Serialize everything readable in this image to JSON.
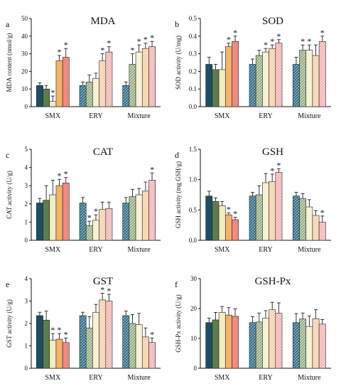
{
  "palette": {
    "solid": [
      "#1d4e63",
      "#5d7d4f",
      "#f3ecc3",
      "#f5b26b",
      "#f08a82"
    ],
    "hatched": [
      "#2f6e8a",
      "#8aa36f",
      "#f3ecc3",
      "#f6c89a",
      "#f0a8a8"
    ]
  },
  "chart_data": [
    {
      "type": "bar",
      "panel_letter": "a",
      "title": "MDA",
      "ylabel": "MDA content (nmol/g)",
      "ylim": [
        0,
        50
      ],
      "yticks": [
        "0",
        "10",
        "20",
        "30",
        "40",
        "50"
      ],
      "categories": [
        "SMX",
        "ERY",
        "Mixture"
      ],
      "values": [
        [
          12,
          10,
          3,
          26,
          28
        ],
        [
          12,
          14,
          16,
          26,
          31
        ],
        [
          12,
          24,
          31,
          33,
          34
        ]
      ],
      "errors": [
        [
          1.5,
          2,
          3,
          3,
          5
        ],
        [
          2,
          4,
          3,
          4,
          3
        ],
        [
          2,
          6,
          4,
          3,
          3
        ]
      ],
      "significant": [
        [
          false,
          false,
          true,
          true,
          true
        ],
        [
          false,
          false,
          false,
          true,
          true
        ],
        [
          false,
          true,
          true,
          true,
          true
        ]
      ]
    },
    {
      "type": "bar",
      "panel_letter": "b",
      "title": "SOD",
      "ylabel": "SOD activity (U/mg)",
      "ylim": [
        0,
        0.5
      ],
      "yticks": [
        "0.0",
        "0.1",
        "0.2",
        "0.3",
        "0.4",
        "0.5"
      ],
      "categories": [
        "SMX",
        "ERY",
        "Mixture"
      ],
      "values": [
        [
          0.24,
          0.21,
          0.21,
          0.34,
          0.37
        ],
        [
          0.24,
          0.29,
          0.31,
          0.33,
          0.36
        ],
        [
          0.24,
          0.32,
          0.32,
          0.29,
          0.37
        ]
      ],
      "errors": [
        [
          0.04,
          0.03,
          0.1,
          0.02,
          0.03
        ],
        [
          0.03,
          0.03,
          0.02,
          0.02,
          0.02
        ],
        [
          0.04,
          0.03,
          0.03,
          0.06,
          0.03
        ]
      ],
      "significant": [
        [
          false,
          false,
          false,
          true,
          true
        ],
        [
          false,
          false,
          true,
          true,
          true
        ],
        [
          false,
          true,
          true,
          false,
          true
        ]
      ]
    },
    {
      "type": "bar",
      "panel_letter": "c",
      "title": "CAT",
      "ylabel": "CAT activity (U/g)",
      "ylim": [
        0,
        5
      ],
      "yticks": [
        "0",
        "1",
        "2",
        "3",
        "4",
        "5"
      ],
      "categories": [
        "SMX",
        "ERY",
        "Mixture"
      ],
      "values": [
        [
          2.05,
          2.2,
          2.5,
          3.0,
          3.15
        ],
        [
          2.05,
          0.8,
          1.1,
          1.7,
          1.75
        ],
        [
          2.05,
          2.4,
          2.5,
          2.7,
          3.3
        ]
      ],
      "errors": [
        [
          0.25,
          0.8,
          0.8,
          0.35,
          0.3
        ],
        [
          0.3,
          0.25,
          0.3,
          0.4,
          0.35
        ],
        [
          0.3,
          0.4,
          0.35,
          0.5,
          0.4
        ]
      ],
      "significant": [
        [
          false,
          false,
          false,
          true,
          true
        ],
        [
          false,
          true,
          true,
          false,
          false
        ],
        [
          false,
          false,
          false,
          false,
          true
        ]
      ]
    },
    {
      "type": "bar",
      "panel_letter": "d",
      "title": "GSH",
      "ylabel": "GSH activity (mg GSH/g)",
      "ylim": [
        0,
        1.5
      ],
      "yticks": [
        "0.0",
        "0.5",
        "1.0",
        "1.5"
      ],
      "categories": [
        "SMX",
        "ERY",
        "Mixture"
      ],
      "values": [
        [
          0.73,
          0.64,
          0.57,
          0.42,
          0.34
        ],
        [
          0.73,
          0.75,
          0.95,
          0.97,
          1.12
        ],
        [
          0.73,
          0.69,
          0.55,
          0.41,
          0.3
        ]
      ],
      "errors": [
        [
          0.08,
          0.06,
          0.07,
          0.03,
          0.04
        ],
        [
          0.06,
          0.15,
          0.15,
          0.12,
          0.06
        ],
        [
          0.06,
          0.08,
          0.12,
          0.08,
          0.1
        ]
      ],
      "significant": [
        [
          false,
          false,
          false,
          true,
          true
        ],
        [
          false,
          false,
          false,
          true,
          true
        ],
        [
          false,
          false,
          false,
          false,
          true
        ]
      ]
    },
    {
      "type": "bar",
      "panel_letter": "e",
      "title": "GST",
      "ylabel": "GST activity (U/g)",
      "ylim": [
        0,
        4
      ],
      "yticks": [
        "0",
        "1",
        "2",
        "3",
        "4"
      ],
      "categories": [
        "SMX",
        "ERY",
        "Mixture"
      ],
      "values": [
        [
          2.35,
          2.15,
          1.25,
          1.3,
          1.15
        ],
        [
          2.35,
          1.8,
          2.5,
          3.05,
          3.0
        ],
        [
          2.35,
          2.0,
          1.95,
          1.4,
          1.15
        ]
      ],
      "errors": [
        [
          0.15,
          0.4,
          0.3,
          0.25,
          0.2
        ],
        [
          0.15,
          0.5,
          0.35,
          0.3,
          0.3
        ],
        [
          0.2,
          0.4,
          0.5,
          0.4,
          0.2
        ]
      ],
      "significant": [
        [
          false,
          false,
          true,
          true,
          true
        ],
        [
          false,
          false,
          false,
          true,
          true
        ],
        [
          false,
          false,
          false,
          false,
          true
        ]
      ]
    },
    {
      "type": "bar",
      "panel_letter": "f",
      "title": "GSH-Px",
      "ylabel": "GSH-Px activity (U/g)",
      "ylim": [
        0,
        30
      ],
      "yticks": [
        "0",
        "10",
        "20",
        "30"
      ],
      "categories": [
        "SMX",
        "ERY",
        "Mixture"
      ],
      "values": [
        [
          15.3,
          16.2,
          18.7,
          17.8,
          17.4
        ],
        [
          15.3,
          15.5,
          16.8,
          19.6,
          18.4
        ],
        [
          15.3,
          16.5,
          14.0,
          16.6,
          14.8
        ]
      ],
      "errors": [
        [
          1.5,
          2.5,
          2.0,
          2.5,
          2.5
        ],
        [
          2.0,
          3.0,
          2.5,
          2.5,
          3.5
        ],
        [
          3.0,
          2.0,
          3.5,
          3.0,
          1.5
        ]
      ],
      "significant": [
        [
          false,
          false,
          false,
          false,
          false
        ],
        [
          false,
          false,
          false,
          false,
          false
        ],
        [
          false,
          false,
          false,
          false,
          false
        ]
      ]
    }
  ]
}
